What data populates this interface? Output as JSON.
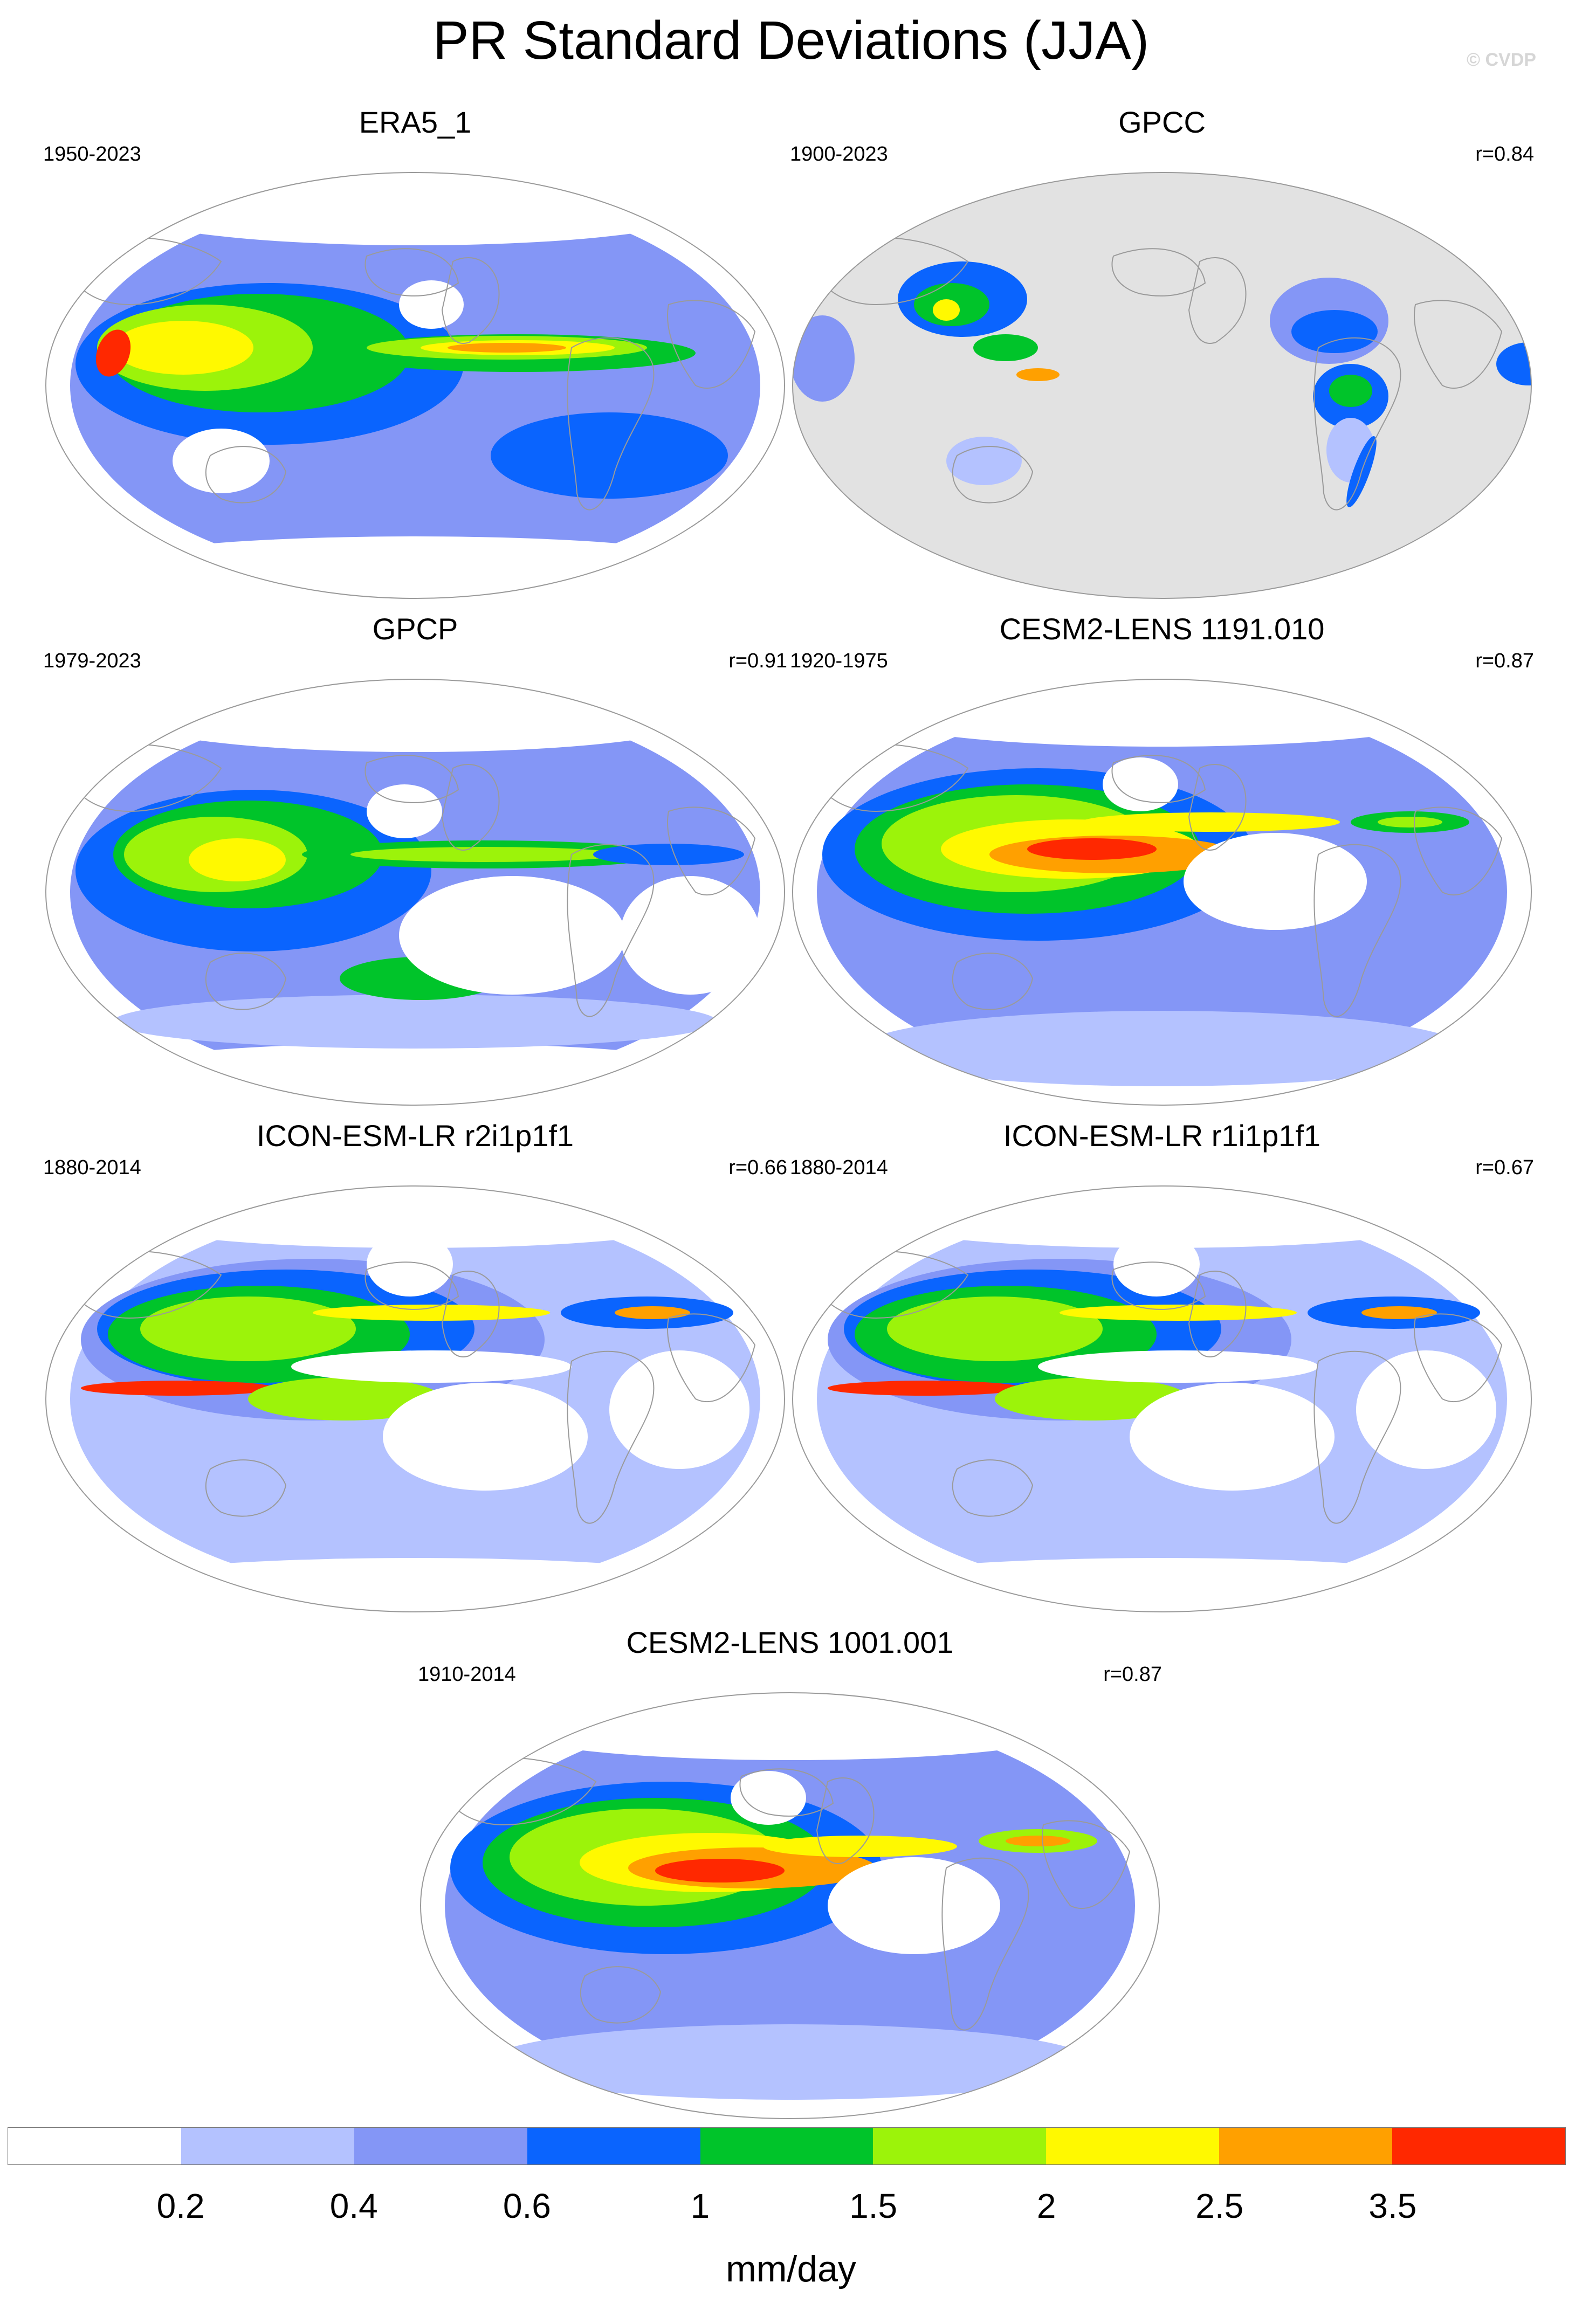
{
  "header": {
    "title": "PR Standard Deviations (JJA)",
    "credit": "© CVDP"
  },
  "colors": {
    "levels": [
      "#ffffff",
      "#b4c2ff",
      "#8496f6",
      "#0a64fe",
      "#00c42a",
      "#9cf30a",
      "#fff900",
      "#ffa000",
      "#ff2800"
    ],
    "land_mask": "#e2e2e2",
    "coast": "#9a9a9a",
    "outline": "#9a9a9a"
  },
  "panels": [
    {
      "title": "ERA5_1",
      "years": "1950-2023",
      "corr": ""
    },
    {
      "title": "GPCC",
      "years": "1900-2023",
      "corr": "r=0.84"
    },
    {
      "title": "GPCP",
      "years": "1979-2023",
      "corr": "r=0.91"
    },
    {
      "title": "CESM2-LENS 1191.010",
      "years": "1920-1975",
      "corr": "r=0.87"
    },
    {
      "title": "ICON-ESM-LR r2i1p1f1",
      "years": "1880-2014",
      "corr": "r=0.66"
    },
    {
      "title": "ICON-ESM-LR r1i1p1f1",
      "years": "1880-2014",
      "corr": "r=0.67"
    },
    {
      "title": "CESM2-LENS 1001.001",
      "years": "1910-2014",
      "corr": "r=0.87"
    }
  ],
  "colorbar": {
    "ticks": [
      "0.2",
      "0.4",
      "0.6",
      "1",
      "1.5",
      "2",
      "2.5",
      "3.5"
    ],
    "units": "mm/day"
  }
}
